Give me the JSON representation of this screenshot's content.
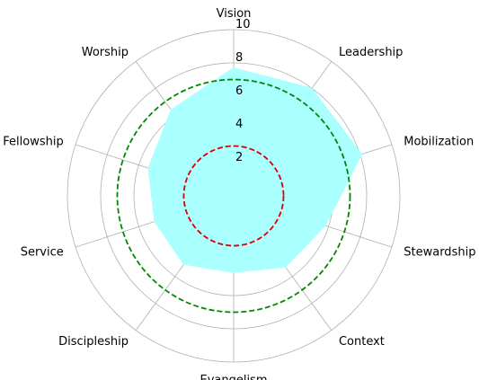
{
  "chart_data": {
    "type": "radar",
    "title": "",
    "categories": [
      "Vision",
      "Leadership",
      "Mobilization",
      "Stewardship",
      "Context",
      "Evangelism",
      "Discipleship",
      "Service",
      "Fellowship",
      "Worship"
    ],
    "series": [
      {
        "values": [
          7.7,
          8.0,
          8.1,
          5.8,
          5.3,
          4.6,
          5.1,
          5.0,
          5.4,
          6.4
        ],
        "color": "#aaffff",
        "style": "filled"
      }
    ],
    "reference_circles": [
      {
        "value": 3.0,
        "color": "#dd0000",
        "style": "dashed"
      },
      {
        "value": 7.0,
        "color": "#008800",
        "style": "dashed"
      }
    ],
    "r_ticks": [
      "2",
      "4",
      "6",
      "8",
      "10"
    ],
    "rlim": [
      0,
      10
    ],
    "grid": true,
    "legend": "none"
  }
}
